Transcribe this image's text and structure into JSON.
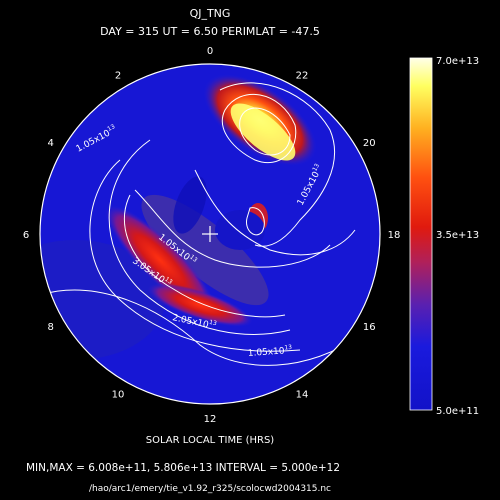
{
  "chart_data": {
    "type": "heatmap",
    "title": "QJ_TNG",
    "subtitle": "DAY = 315  UT =  6.50  PERIMLAT = -47.5",
    "xlabel": "SOLAR LOCAL TIME (HRS)",
    "hour_labels": [
      "0",
      "2",
      "4",
      "6",
      "8",
      "10",
      "12",
      "14",
      "16",
      "18",
      "20",
      "22"
    ],
    "hours": [
      0,
      2,
      4,
      6,
      8,
      10,
      12,
      14,
      16,
      18,
      20,
      22
    ],
    "colorbar": {
      "min_label": "5.0e+11",
      "mid_label": "3.5e+13",
      "max_label": "7.0e+13",
      "min": 500000000000.0,
      "mid": 35000000000000.0,
      "max": 70000000000000.0
    },
    "contour_labels": [
      {
        "text": "1.05x10",
        "exp": "13",
        "where": "left-upper"
      },
      {
        "text": "1.05x10",
        "exp": "13",
        "where": "upper-right"
      },
      {
        "text": "1.05x10",
        "exp": "13",
        "where": "center"
      },
      {
        "text": "3.05x10",
        "exp": "13",
        "where": "left-band"
      },
      {
        "text": "2.05x10",
        "exp": "13",
        "where": "lower-band"
      },
      {
        "text": "1.05x10",
        "exp": "13",
        "where": "bottom"
      }
    ],
    "min_value": 600800000000.0,
    "max_value": 58060000000000.0,
    "interval": 5000000000000.0,
    "minmax_text": "MIN,MAX =  6.008e+11, 5.806e+13 INTERVAL =  5.000e+12",
    "source": "/hao/arc1/emery/tie_v1.92_r325/scolocwd2004315.nc",
    "colors": {
      "background": "#000000",
      "low": "#1515d8",
      "mid": "#e01a0e",
      "high": "#ffff99"
    }
  }
}
